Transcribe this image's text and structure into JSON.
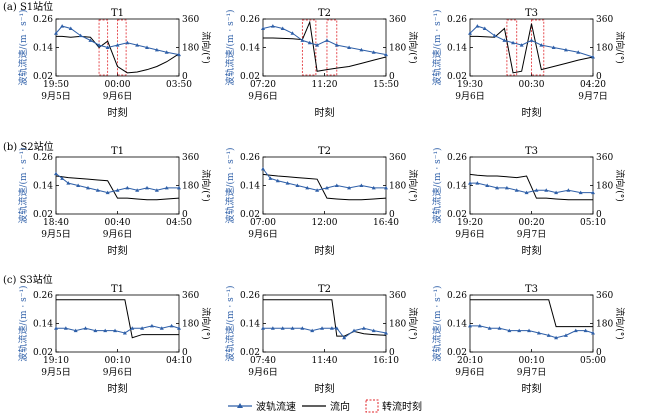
{
  "station_labels": [
    "(a) S1站位",
    "(b) S2站位",
    "(c) S3站位"
  ],
  "left_axis_label": "波轨流速/(m · s⁻¹)",
  "right_axis_label": "流向/(°)",
  "x_axis_title": "时刻",
  "legend": {
    "speed": "波轨流速",
    "direction": "流向",
    "turning": "转流时刻"
  },
  "colors": {
    "speed": "#2e5fa8",
    "direction": "#000000",
    "turning": "#e0242a",
    "axis_label": "#2e5fa8"
  },
  "chart_data": [
    {
      "type": "line",
      "station": "S1",
      "title": "T1",
      "ylim_left": [
        0.02,
        0.26
      ],
      "ylim_right": [
        0,
        360
      ],
      "left_ticks": [
        "0.02",
        "0.14",
        "0.26"
      ],
      "right_ticks": [
        "0",
        "180",
        "360"
      ],
      "x_ticks": [
        {
          "label": "19:50",
          "date": "9月5日"
        },
        {
          "label": "00:00",
          "date": "9月6日"
        },
        {
          "label": "03:50",
          "date": ""
        }
      ],
      "x": [
        0,
        0.05,
        0.12,
        0.2,
        0.28,
        0.35,
        0.42,
        0.5,
        0.58,
        0.66,
        0.74,
        0.82,
        0.9,
        1.0
      ],
      "speed": [
        0.2,
        0.23,
        0.22,
        0.19,
        0.17,
        0.15,
        0.14,
        0.15,
        0.16,
        0.15,
        0.14,
        0.13,
        0.12,
        0.11
      ],
      "direction": [
        250,
        250,
        245,
        250,
        245,
        180,
        220,
        60,
        20,
        25,
        40,
        60,
        90,
        140
      ],
      "turning_windows": [
        [
          0.35,
          0.42
        ],
        [
          0.5,
          0.57
        ]
      ]
    },
    {
      "type": "line",
      "station": "S1",
      "title": "T2",
      "ylim_left": [
        0.02,
        0.26
      ],
      "ylim_right": [
        0,
        360
      ],
      "left_ticks": [
        "0.02",
        "0.14",
        "0.26"
      ],
      "right_ticks": [
        "0",
        "180",
        "360"
      ],
      "x_ticks": [
        {
          "label": "07:20",
          "date": "9月6日"
        },
        {
          "label": "11:20",
          "date": ""
        },
        {
          "label": "15:50",
          "date": ""
        }
      ],
      "x": [
        0,
        0.08,
        0.16,
        0.24,
        0.32,
        0.38,
        0.44,
        0.52,
        0.6,
        0.7,
        0.8,
        0.9,
        1.0
      ],
      "speed": [
        0.22,
        0.23,
        0.22,
        0.2,
        0.17,
        0.16,
        0.15,
        0.17,
        0.15,
        0.14,
        0.13,
        0.12,
        0.11
      ],
      "direction": [
        240,
        240,
        238,
        235,
        230,
        340,
        30,
        40,
        50,
        60,
        80,
        100,
        120
      ],
      "turning_windows": [
        [
          0.32,
          0.43
        ],
        [
          0.52,
          0.6
        ]
      ]
    },
    {
      "type": "line",
      "station": "S1",
      "title": "T3",
      "ylim_left": [
        0.02,
        0.26
      ],
      "ylim_right": [
        0,
        360
      ],
      "left_ticks": [
        "0.02",
        "0.14",
        "0.26"
      ],
      "right_ticks": [
        "0",
        "180",
        "360"
      ],
      "x_ticks": [
        {
          "label": "19:30",
          "date": "9月6日"
        },
        {
          "label": "00:30",
          "date": ""
        },
        {
          "label": "04:20",
          "date": "9月7日"
        }
      ],
      "x": [
        0,
        0.06,
        0.12,
        0.2,
        0.28,
        0.35,
        0.42,
        0.5,
        0.58,
        0.68,
        0.78,
        0.88,
        1.0
      ],
      "speed": [
        0.2,
        0.23,
        0.22,
        0.19,
        0.17,
        0.16,
        0.15,
        0.17,
        0.15,
        0.14,
        0.13,
        0.12,
        0.1
      ],
      "direction": [
        250,
        250,
        248,
        245,
        300,
        20,
        30,
        330,
        40,
        60,
        80,
        100,
        120
      ],
      "turning_windows": [
        [
          0.3,
          0.38
        ],
        [
          0.5,
          0.6
        ]
      ]
    },
    {
      "type": "line",
      "station": "S2",
      "title": "T1",
      "ylim_left": [
        0.02,
        0.26
      ],
      "ylim_right": [
        0,
        360
      ],
      "left_ticks": [
        "0.02",
        "0.14",
        "0.26"
      ],
      "right_ticks": [
        "0",
        "180",
        "360"
      ],
      "x_ticks": [
        {
          "label": "18:40",
          "date": "9月5日"
        },
        {
          "label": "00:40",
          "date": "9月6日"
        },
        {
          "label": "04:50",
          "date": ""
        }
      ],
      "x": [
        0,
        0.05,
        0.1,
        0.18,
        0.26,
        0.34,
        0.42,
        0.5,
        0.58,
        0.66,
        0.74,
        0.82,
        0.9,
        1.0
      ],
      "speed": [
        0.19,
        0.17,
        0.15,
        0.14,
        0.13,
        0.12,
        0.11,
        0.12,
        0.13,
        0.12,
        0.13,
        0.12,
        0.13,
        0.13
      ],
      "direction": [
        240,
        235,
        230,
        225,
        220,
        215,
        210,
        100,
        100,
        95,
        90,
        90,
        95,
        100
      ],
      "turning_windows": []
    },
    {
      "type": "line",
      "station": "S2",
      "title": "T2",
      "ylim_left": [
        0.02,
        0.26
      ],
      "ylim_right": [
        0,
        360
      ],
      "left_ticks": [
        "0.02",
        "0.14",
        "0.26"
      ],
      "right_ticks": [
        "0",
        "180",
        "360"
      ],
      "x_ticks": [
        {
          "label": "07:00",
          "date": "9月6日"
        },
        {
          "label": "12:00",
          "date": ""
        },
        {
          "label": "16:40",
          "date": ""
        }
      ],
      "x": [
        0,
        0.06,
        0.12,
        0.2,
        0.28,
        0.36,
        0.44,
        0.52,
        0.6,
        0.7,
        0.8,
        0.9,
        1.0
      ],
      "speed": [
        0.21,
        0.17,
        0.16,
        0.15,
        0.14,
        0.13,
        0.12,
        0.13,
        0.14,
        0.13,
        0.14,
        0.13,
        0.13
      ],
      "direction": [
        250,
        245,
        240,
        235,
        230,
        225,
        220,
        100,
        95,
        90,
        90,
        95,
        100
      ],
      "turning_windows": []
    },
    {
      "type": "line",
      "station": "S2",
      "title": "T3",
      "ylim_left": [
        0.02,
        0.26
      ],
      "ylim_right": [
        0,
        360
      ],
      "left_ticks": [
        "0.02",
        "0.14",
        "0.26"
      ],
      "right_ticks": [
        "0",
        "180",
        "360"
      ],
      "x_ticks": [
        {
          "label": "19:20",
          "date": "9月6日"
        },
        {
          "label": "00:20",
          "date": "9月7日"
        },
        {
          "label": "05:10",
          "date": ""
        }
      ],
      "x": [
        0,
        0.06,
        0.14,
        0.22,
        0.3,
        0.38,
        0.46,
        0.54,
        0.62,
        0.7,
        0.8,
        0.9,
        1.0
      ],
      "speed": [
        0.15,
        0.15,
        0.14,
        0.13,
        0.13,
        0.12,
        0.11,
        0.12,
        0.12,
        0.11,
        0.12,
        0.11,
        0.11
      ],
      "direction": [
        250,
        245,
        240,
        240,
        235,
        230,
        240,
        100,
        100,
        95,
        90,
        90,
        90
      ],
      "turning_windows": []
    },
    {
      "type": "line",
      "station": "S3",
      "title": "T1",
      "ylim_left": [
        0.02,
        0.26
      ],
      "ylim_right": [
        0,
        360
      ],
      "left_ticks": [
        "0.02",
        "0.14",
        "0.26"
      ],
      "right_ticks": [
        "0",
        "180",
        "360"
      ],
      "x_ticks": [
        {
          "label": "19:10",
          "date": "9月5日"
        },
        {
          "label": "00:10",
          "date": "9月6日"
        },
        {
          "label": "04:10",
          "date": ""
        }
      ],
      "x": [
        0,
        0.08,
        0.16,
        0.24,
        0.32,
        0.4,
        0.48,
        0.56,
        0.62,
        0.7,
        0.78,
        0.86,
        0.94,
        1.0
      ],
      "speed": [
        0.12,
        0.12,
        0.11,
        0.12,
        0.11,
        0.11,
        0.11,
        0.1,
        0.12,
        0.12,
        0.13,
        0.12,
        0.13,
        0.12
      ],
      "direction": [
        330,
        330,
        330,
        330,
        330,
        330,
        330,
        330,
        90,
        110,
        110,
        110,
        110,
        110
      ],
      "turning_windows": []
    },
    {
      "type": "line",
      "station": "S3",
      "title": "T2",
      "ylim_left": [
        0.02,
        0.26
      ],
      "ylim_right": [
        0,
        360
      ],
      "left_ticks": [
        "0.02",
        "0.14",
        "0.26"
      ],
      "right_ticks": [
        "0",
        "180",
        "360"
      ],
      "x_ticks": [
        {
          "label": "07:40",
          "date": "9月6日"
        },
        {
          "label": "11:40",
          "date": ""
        },
        {
          "label": "16:10",
          "date": ""
        }
      ],
      "x": [
        0,
        0.08,
        0.16,
        0.24,
        0.32,
        0.4,
        0.48,
        0.56,
        0.6,
        0.66,
        0.74,
        0.82,
        0.9,
        1.0
      ],
      "speed": [
        0.12,
        0.12,
        0.12,
        0.12,
        0.12,
        0.11,
        0.12,
        0.12,
        0.12,
        0.08,
        0.11,
        0.12,
        0.11,
        0.1
      ],
      "direction": [
        330,
        330,
        330,
        330,
        330,
        330,
        330,
        330,
        100,
        100,
        130,
        115,
        110,
        105
      ],
      "turning_windows": []
    },
    {
      "type": "line",
      "station": "S3",
      "title": "T3",
      "ylim_left": [
        0.02,
        0.26
      ],
      "ylim_right": [
        0,
        360
      ],
      "left_ticks": [
        "0.02",
        "0.14",
        "0.26"
      ],
      "right_ticks": [
        "0",
        "180",
        "360"
      ],
      "x_ticks": [
        {
          "label": "20:10",
          "date": "9月6日"
        },
        {
          "label": "00:10",
          "date": "9月7日"
        },
        {
          "label": "05:00",
          "date": ""
        }
      ],
      "x": [
        0,
        0.08,
        0.16,
        0.24,
        0.32,
        0.4,
        0.48,
        0.56,
        0.64,
        0.7,
        0.78,
        0.86,
        0.94,
        1.0
      ],
      "speed": [
        0.13,
        0.13,
        0.12,
        0.12,
        0.11,
        0.11,
        0.11,
        0.1,
        0.09,
        0.08,
        0.09,
        0.11,
        0.11,
        0.1
      ],
      "direction": [
        330,
        330,
        330,
        330,
        330,
        330,
        330,
        330,
        330,
        160,
        160,
        160,
        160,
        160
      ],
      "turning_windows": []
    }
  ]
}
